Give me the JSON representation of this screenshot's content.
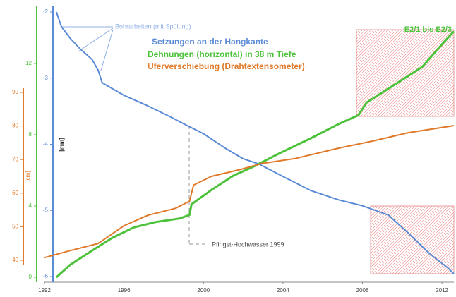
{
  "chart_data": {
    "type": "line",
    "xlim": [
      1992,
      2012.6
    ],
    "xticks": [
      1992,
      1996,
      2000,
      2004,
      2008,
      2012
    ],
    "ylim": [
      -6,
      -2
    ],
    "yticks": [
      -6,
      -5,
      -4,
      -3,
      -2
    ],
    "ylabel": "[mm]",
    "y2lim": [
      0,
      12
    ],
    "y2ticks": [
      0,
      4,
      8,
      12
    ],
    "y3lim": [
      40,
      90
    ],
    "y3ticks": [
      40,
      50,
      60,
      70,
      80,
      90
    ],
    "y3label": "[cm]",
    "annotations": [
      "Bohrarbeiten (mit Spülung)",
      "Pfingst-Hochwasser 1999",
      "E2/1 bis E2/3"
    ],
    "series": [
      {
        "name": "Setzungen an der Hangkante",
        "color": "#5b8bd6",
        "axis": "y",
        "x": [
          1992.6,
          1992.85,
          1993.3,
          1993.8,
          1994.4,
          1994.7,
          1994.9,
          1996,
          1997.2,
          1998.3,
          1999.2,
          2000,
          2001.1,
          2002,
          2002.8,
          2003.95,
          2005.4,
          2006.8,
          2008,
          2009.3,
          2010.3,
          2011.4,
          2012.3,
          2012.6
        ],
        "values": [
          -2.0,
          -2.22,
          -2.4,
          -2.56,
          -2.72,
          -2.88,
          -3.07,
          -3.26,
          -3.42,
          -3.58,
          -3.72,
          -3.84,
          -4.06,
          -4.22,
          -4.3,
          -4.48,
          -4.7,
          -4.84,
          -4.93,
          -5.07,
          -5.34,
          -5.66,
          -5.87,
          -5.96
        ]
      },
      {
        "name": "Dehnungen (horizontal) in 38 m Tiefe",
        "color": "#4cc23a",
        "axis": "y2",
        "x": [
          1992.6,
          1993.3,
          1994.4,
          1995.4,
          1996.5,
          1997.6,
          1998.8,
          1999.3,
          1999.4,
          2000.4,
          2001.5,
          2002.5,
          2003.9,
          2005.4,
          2006.8,
          2007.8,
          2008.2,
          2009.6,
          2011,
          2012.1,
          2012.6
        ],
        "values": [
          0,
          0.7,
          1.5,
          2.2,
          2.8,
          3.1,
          3.3,
          3.5,
          4.1,
          4.9,
          5.7,
          6.2,
          7.0,
          7.8,
          8.6,
          9.1,
          9.8,
          10.8,
          11.8,
          13.2,
          13.8
        ]
      },
      {
        "name": "Uferverschiebung (Drahtextensometer)",
        "color": "#e07a2a",
        "axis": "y3",
        "x": [
          1992,
          1993.3,
          1994.7,
          1996,
          1997.2,
          1998.6,
          1999.3,
          1999.5,
          2000.4,
          2001.9,
          2002.9,
          2004.6,
          2006.8,
          2008.5,
          2010.3,
          2012.6
        ],
        "values": [
          40.8,
          42.9,
          45,
          50.3,
          53.4,
          55.5,
          57.6,
          62.4,
          65,
          67.1,
          68.8,
          70.3,
          73.4,
          75.5,
          78,
          80.1
        ]
      }
    ]
  }
}
